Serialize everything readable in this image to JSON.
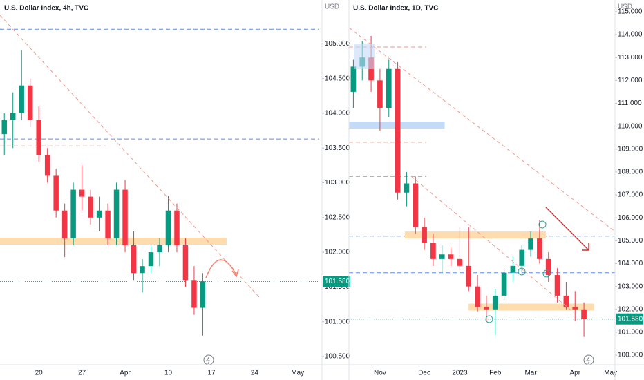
{
  "chart_data": [
    {
      "type": "candlestick",
      "title": "U.S. Dollar Index, 4h, TVC",
      "axis_unit": "USD",
      "categories": [
        null,
        null,
        null,
        null,
        "20",
        null,
        null,
        null,
        null,
        "27",
        null,
        null,
        null,
        null,
        "Apr",
        null,
        null,
        null,
        null,
        "10",
        null,
        null,
        null,
        null,
        "17",
        null,
        null,
        null,
        null,
        "24",
        null,
        null,
        null,
        null,
        "May",
        null,
        null
      ],
      "open": [
        103.7,
        103.9,
        104.0,
        104.4,
        103.9,
        103.4,
        103.1,
        102.6,
        102.2,
        102.9,
        102.8,
        102.5,
        102.6,
        102.2,
        102.9,
        102.1,
        101.7,
        101.8,
        102.0,
        102.1,
        102.6,
        102.1,
        101.6,
        101.2,
        null,
        null,
        null,
        null,
        null,
        null,
        null,
        null,
        null,
        null,
        null,
        null,
        null
      ],
      "high": [
        104.0,
        104.3,
        104.91,
        104.5,
        104.1,
        103.5,
        103.2,
        102.7,
        103.0,
        103.26,
        102.9,
        102.8,
        102.7,
        103.0,
        103.04,
        102.3,
        101.9,
        102.1,
        102.2,
        102.81,
        102.7,
        102.2,
        101.8,
        101.7,
        null,
        null,
        null,
        null,
        null,
        null,
        null,
        null,
        null,
        null,
        null,
        null,
        null
      ],
      "low": [
        103.4,
        103.5,
        103.9,
        103.8,
        103.3,
        103.0,
        102.5,
        101.93,
        102.1,
        102.6,
        102.4,
        102.3,
        102.1,
        102.1,
        102.0,
        101.6,
        101.42,
        101.7,
        101.8,
        102.0,
        102.0,
        101.5,
        101.1,
        100.8,
        null,
        null,
        null,
        null,
        null,
        null,
        null,
        null,
        null,
        null,
        null,
        null,
        null
      ],
      "close": [
        103.9,
        104.0,
        104.4,
        103.9,
        103.4,
        103.1,
        102.6,
        102.2,
        102.9,
        102.8,
        102.5,
        102.6,
        102.2,
        102.9,
        102.1,
        101.7,
        101.8,
        102.0,
        102.1,
        102.6,
        102.1,
        101.6,
        101.2,
        101.58,
        null,
        null,
        null,
        null,
        null,
        null,
        null,
        null,
        null,
        null,
        null,
        null,
        null
      ],
      "up_color": "#089981",
      "down_color": "#f23645",
      "ylim": [
        100.38,
        105.63
      ],
      "yticks": [
        {
          "value": 100.5,
          "label": "100.500"
        },
        {
          "value": 101,
          "label": "101.000"
        },
        {
          "value": 101.5,
          "label": "101.500"
        },
        {
          "value": 102,
          "label": "102.000"
        },
        {
          "value": 102.5,
          "label": "102.500"
        },
        {
          "value": 103,
          "label": "103.000"
        },
        {
          "value": 103.5,
          "label": "103.500"
        },
        {
          "value": 104,
          "label": "104.000"
        },
        {
          "value": 104.5,
          "label": "104.500"
        },
        {
          "value": 105,
          "label": "105.000"
        }
      ],
      "last_price": {
        "value": 101.58,
        "label": "101.580"
      },
      "levels": [
        {
          "value": 105.21,
          "color": "#5b8def",
          "style": "dashed"
        },
        {
          "value": 103.63,
          "color": "#5b8def",
          "style": "dashed"
        },
        {
          "value": 103.53,
          "color": "#f4978e",
          "style": "dashed"
        },
        {
          "value": 102.16,
          "color": "#ffdcae",
          "style": "band"
        },
        {
          "value": 101.58,
          "color": "#089981",
          "style": "dotted"
        }
      ]
    },
    {
      "type": "candlestick",
      "title": "U.S. Dollar Index, 1D, TVC",
      "axis_unit": "USD",
      "categories": [
        null,
        null,
        null,
        "Nov",
        null,
        null,
        null,
        null,
        "Dec",
        null,
        null,
        null,
        "2023",
        null,
        null,
        null,
        "Feb",
        null,
        null,
        null,
        "Mar",
        null,
        null,
        null,
        null,
        "Apr",
        null,
        null,
        null,
        "May"
      ],
      "open": [
        111.5,
        112.6,
        113.0,
        112.0,
        110.8,
        112.5,
        107.1,
        107.5,
        105.6,
        104.9,
        104.2,
        104.4,
        104.2,
        103.9,
        103.0,
        102.1,
        102.0,
        102.6,
        103.6,
        103.9,
        104.6,
        105.1,
        104.2,
        103.5,
        102.6,
        102.1,
        102.0,
        null,
        null,
        null
      ],
      "high": [
        112.9,
        113.7,
        113.94,
        112.5,
        112.9,
        112.8,
        108.0,
        107.8,
        106.0,
        105.3,
        104.8,
        104.7,
        105.6,
        105.6,
        103.5,
        102.6,
        102.9,
        103.8,
        104.3,
        104.8,
        105.4,
        105.9,
        104.5,
        103.8,
        103.2,
        102.8,
        102.3,
        null,
        null,
        null
      ],
      "low": [
        110.8,
        112.0,
        111.5,
        109.8,
        110.4,
        106.8,
        106.5,
        105.3,
        104.6,
        103.9,
        103.6,
        103.9,
        103.7,
        102.8,
        101.9,
        101.5,
        100.88,
        102.4,
        103.2,
        103.6,
        104.3,
        104.0,
        103.2,
        102.3,
        102.0,
        101.5,
        100.8,
        null,
        null,
        null
      ],
      "close": [
        112.6,
        113.0,
        112.0,
        110.8,
        112.5,
        107.1,
        107.5,
        105.6,
        104.9,
        104.2,
        104.4,
        104.2,
        103.9,
        103.0,
        102.1,
        102.0,
        102.6,
        103.6,
        103.9,
        104.6,
        105.1,
        104.2,
        103.5,
        102.6,
        102.1,
        102.0,
        101.58,
        null,
        null,
        null
      ],
      "up_color": "#089981",
      "down_color": "#f23645",
      "ylim": [
        99.58,
        115.51
      ],
      "yticks": [
        {
          "value": 100,
          "label": "100.000"
        },
        {
          "value": 101,
          "label": "101.000"
        },
        {
          "value": 102,
          "label": "102.000"
        },
        {
          "value": 103,
          "label": "103.000"
        },
        {
          "value": 104,
          "label": "104.000"
        },
        {
          "value": 105,
          "label": "105.000"
        },
        {
          "value": 106,
          "label": "106.000"
        },
        {
          "value": 107,
          "label": "107.000"
        },
        {
          "value": 108,
          "label": "108.000"
        },
        {
          "value": 109,
          "label": "109.000"
        },
        {
          "value": 110,
          "label": "110.000"
        },
        {
          "value": 111,
          "label": "111.000"
        },
        {
          "value": 112,
          "label": "112.000"
        },
        {
          "value": 113,
          "label": "113.000"
        },
        {
          "value": 114,
          "label": "114.000"
        },
        {
          "value": 115,
          "label": "115.000"
        }
      ],
      "last_price": {
        "value": 101.58,
        "label": "101.580"
      },
      "levels": [
        {
          "value": 113.46,
          "color": "#f4978e",
          "style": "dashed"
        },
        {
          "value": 109.3,
          "color": "#f4978e",
          "style": "dashed"
        },
        {
          "value": 107.8,
          "color": "#f4978e",
          "style": "dashed"
        },
        {
          "value": 110.05,
          "color": "#c3dbf6",
          "style": "band"
        },
        {
          "value": 105.2,
          "color": "#5b8def",
          "style": "dashed"
        },
        {
          "value": 103.6,
          "color": "#5b8def",
          "style": "dashed"
        },
        {
          "value": 105.25,
          "color": "#ffdcae",
          "style": "band"
        },
        {
          "value": 102.1,
          "color": "#ffdcae",
          "style": "band"
        },
        {
          "value": 101.58,
          "color": "#089981",
          "style": "dotted"
        }
      ]
    }
  ]
}
